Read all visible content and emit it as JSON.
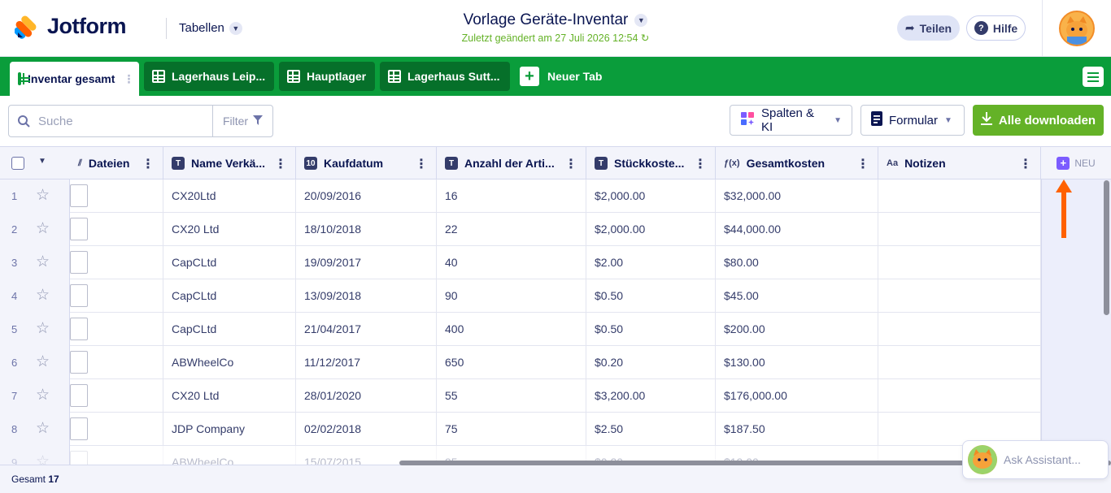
{
  "app": {
    "brand": "Jotform",
    "tables_menu": "Tabellen"
  },
  "document": {
    "title": "Vorlage Geräte-Inventar",
    "subtitle": "Zuletzt geändert am 27 Juli 2026 12:54"
  },
  "header_actions": {
    "share": "Teilen",
    "help": "Hilfe"
  },
  "tabs": [
    {
      "label": "Inventar gesamt",
      "active": true
    },
    {
      "label": "Lagerhaus Leip...",
      "active": false
    },
    {
      "label": "Hauptlager",
      "active": false
    },
    {
      "label": "Lagerhaus Sutt...",
      "active": false
    }
  ],
  "new_tab": "Neuer Tab",
  "toolbar": {
    "search_placeholder": "Suche",
    "filter": "Filter",
    "columns_ai": "Spalten & KI",
    "form": "Formular",
    "download_all": "Alle downloaden"
  },
  "columns": [
    {
      "label": "Dateien",
      "type_icon": "paperclip-icon"
    },
    {
      "label": "Name Verkä...",
      "type_icon": "T"
    },
    {
      "label": "Kaufdatum",
      "type_icon": "calendar-icon"
    },
    {
      "label": "Anzahl der Arti...",
      "type_icon": "T"
    },
    {
      "label": "Stückkoste...",
      "type_icon": "T"
    },
    {
      "label": "Gesamtkosten",
      "type_icon": "f(x)"
    },
    {
      "label": "Notizen",
      "type_icon": "Aa"
    }
  ],
  "new_column": "NEU",
  "rows": [
    {
      "num": "1",
      "vendor": "CX20Ltd",
      "date": "20/09/2016",
      "qty": "16",
      "unit": "$2,000.00",
      "total": "$32,000.00"
    },
    {
      "num": "2",
      "vendor": "CX20 Ltd",
      "date": "18/10/2018",
      "qty": "22",
      "unit": "$2,000.00",
      "total": "$44,000.00"
    },
    {
      "num": "3",
      "vendor": "CapCLtd",
      "date": "19/09/2017",
      "qty": "40",
      "unit": "$2.00",
      "total": "$80.00"
    },
    {
      "num": "4",
      "vendor": "CapCLtd",
      "date": "13/09/2018",
      "qty": "90",
      "unit": "$0.50",
      "total": "$45.00"
    },
    {
      "num": "5",
      "vendor": "CapCLtd",
      "date": "21/04/2017",
      "qty": "400",
      "unit": "$0.50",
      "total": "$200.00"
    },
    {
      "num": "6",
      "vendor": "ABWheelCo",
      "date": "11/12/2017",
      "qty": "650",
      "unit": "$0.20",
      "total": "$130.00"
    },
    {
      "num": "7",
      "vendor": "CX20 Ltd",
      "date": "28/01/2020",
      "qty": "55",
      "unit": "$3,200.00",
      "total": "$176,000.00"
    },
    {
      "num": "8",
      "vendor": "JDP Company",
      "date": "02/02/2018",
      "qty": "75",
      "unit": "$2.50",
      "total": "$187.50"
    },
    {
      "num": "9",
      "vendor": "ABWheelCo",
      "date": "15/07/2015",
      "qty": "95",
      "unit": "$0.20",
      "total": "$19.00"
    }
  ],
  "footer": {
    "total_label": "Gesamt",
    "total_count": "17"
  },
  "assistant": "Ask Assistant..."
}
